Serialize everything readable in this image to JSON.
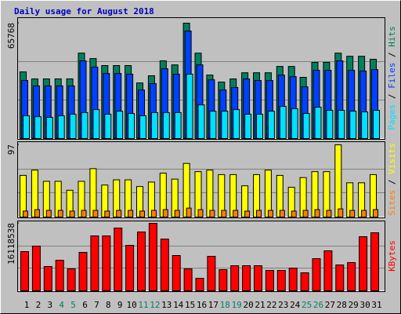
{
  "chart_data": {
    "type": "bar",
    "title": "Daily usage for August 2018",
    "legend_separator": " / ",
    "categories": [
      "1",
      "2",
      "3",
      "4",
      "5",
      "6",
      "7",
      "8",
      "9",
      "10",
      "11",
      "12",
      "13",
      "14",
      "15",
      "16",
      "17",
      "18",
      "19",
      "20",
      "21",
      "22",
      "23",
      "24",
      "25",
      "26",
      "27",
      "28",
      "29",
      "30",
      "31"
    ],
    "category_colors": [
      "#000000",
      "#000000",
      "#000000",
      "#00806b",
      "#00806b",
      "#000000",
      "#000000",
      "#000000",
      "#000000",
      "#000000",
      "#00806b",
      "#00806b",
      "#000000",
      "#000000",
      "#000000",
      "#000000",
      "#000000",
      "#00806b",
      "#00806b",
      "#000000",
      "#000000",
      "#000000",
      "#000000",
      "#000000",
      "#00806b",
      "#00806b",
      "#000000",
      "#000000",
      "#000000",
      "#000000",
      "#000000"
    ],
    "panels": [
      {
        "ylim": [
          0,
          65768
        ],
        "yticks": [
          65768
        ],
        "series": [
          {
            "name": "Hits",
            "color": "#00805c",
            "values": [
              38000,
              34000,
              34000,
              34000,
              34000,
              48700,
              45600,
              41600,
              41600,
              41600,
              31700,
              35800,
              44300,
              42000,
              65768,
              48700,
              36200,
              32200,
              34000,
              37500,
              37500,
              37500,
              41100,
              41100,
              34900,
              43400,
              43400,
              48700,
              46900,
              46900,
              45200
            ]
          },
          {
            "name": "Files",
            "color": "#0040ff",
            "values": [
              33100,
              30000,
              30000,
              30000,
              30000,
              44300,
              40700,
              37100,
              37100,
              36700,
              27700,
              31300,
              39800,
              36700,
              61300,
              42000,
              33500,
              27700,
              29100,
              34000,
              33100,
              33100,
              36200,
              35300,
              29500,
              38900,
              38900,
              44300,
              38900,
              38500,
              39300
            ]
          },
          {
            "name": "Pages",
            "color": "#00e0ff",
            "values": [
              13000,
              12500,
              12100,
              13000,
              13900,
              14800,
              16500,
              13900,
              15600,
              14300,
              13000,
              14800,
              14800,
              14800,
              36700,
              19200,
              15600,
              15600,
              16500,
              13900,
              13900,
              15600,
              18300,
              17000,
              14300,
              17900,
              16100,
              16100,
              15600,
              15200,
              16100
            ]
          }
        ]
      },
      {
        "ylim": [
          0,
          97
        ],
        "yticks": [
          97
        ],
        "series": [
          {
            "name": "Visits",
            "color": "#ffff00",
            "values": [
              56,
              63,
              48,
              48,
              36,
              48,
              65,
              43,
              50,
              50,
              41,
              47,
              59,
              51,
              72,
              61,
              63,
              57,
              57,
              42,
              57,
              63,
              56,
              40,
              53,
              61,
              61,
              97,
              46,
              46,
              57
            ]
          },
          {
            "name": "Sites",
            "color": "#ff8000",
            "values": [
              8,
              10,
              9,
              9,
              8,
              9,
              9,
              8,
              9,
              9,
              8,
              9,
              10,
              9,
              12,
              10,
              9,
              9,
              9,
              8,
              9,
              9,
              9,
              8,
              9,
              10,
              9,
              11,
              9,
              9,
              10
            ]
          }
        ]
      },
      {
        "ylim": [
          0,
          16118538
        ],
        "yticks": [
          16118538
        ],
        "series": [
          {
            "name": "KBytes",
            "color": "#ff0000",
            "values": [
              9371000,
              10683000,
              5810000,
              7310000,
              5248000,
              9184000,
              13120000,
              13120000,
              14994000,
              10871000,
              14057000,
              16118538,
              12370000,
              8434000,
              5248000,
              2999000,
              8247000,
              5060000,
              5998000,
              5998000,
              5998000,
              4873000,
              4873000,
              5435000,
              4311000,
              7684000,
              9559000,
              6185000,
              6747000,
              12932000,
              13869000
            ]
          }
        ]
      }
    ]
  }
}
